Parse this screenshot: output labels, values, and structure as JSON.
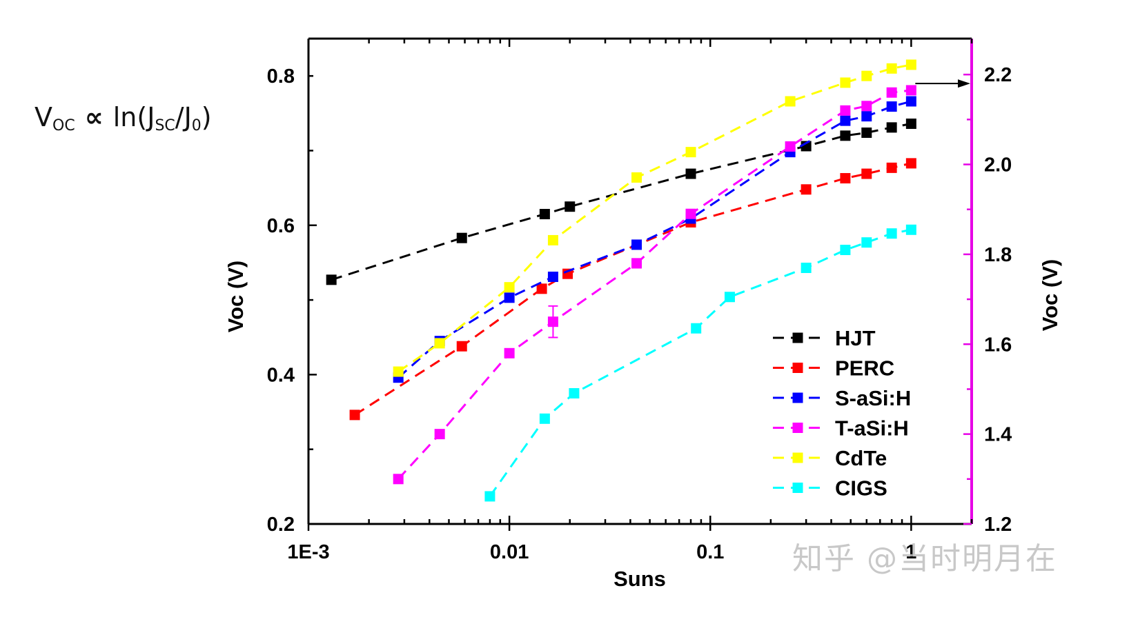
{
  "formula": {
    "v": "V",
    "v_sub": "OC",
    "prop": "∝",
    "ln": "ln(J",
    "jsc_sub": "SC",
    "slash": "/J",
    "j0_sub": "0",
    "close": ")"
  },
  "watermark": "知乎 @当时明月在",
  "colors": {
    "HJT": "#000000",
    "PERC": "#ff0000",
    "S-aSi:H": "#0000ff",
    "T-aSi:H": "#ff00ff",
    "CdTe": "#ffff00",
    "CIGS": "#00ffff",
    "right_axis": "#e600e6"
  },
  "chart_data": {
    "type": "scatter",
    "xlabel": "Suns",
    "ylabel": "Voc (V)",
    "y2label": "Voc (V)",
    "xscale": "log",
    "xlim": [
      0.001,
      2
    ],
    "ylim": [
      0.2,
      0.85
    ],
    "y2lim": [
      1.2,
      2.28
    ],
    "xticks": [
      {
        "v": 0.001,
        "label": "1E-3"
      },
      {
        "v": 0.01,
        "label": "0.01"
      },
      {
        "v": 0.1,
        "label": "0.1"
      },
      {
        "v": 1,
        "label": "1"
      }
    ],
    "yticks": [
      {
        "v": 0.2,
        "label": "0.2"
      },
      {
        "v": 0.4,
        "label": "0.4"
      },
      {
        "v": 0.6,
        "label": "0.6"
      },
      {
        "v": 0.8,
        "label": "0.8"
      }
    ],
    "y2ticks": [
      {
        "v": 1.2,
        "label": "1.2"
      },
      {
        "v": 1.4,
        "label": "1.4"
      },
      {
        "v": 1.6,
        "label": "1.6"
      },
      {
        "v": 1.8,
        "label": "1.8"
      },
      {
        "v": 2.0,
        "label": "2.0"
      },
      {
        "v": 2.2,
        "label": "2.2"
      }
    ],
    "grid": false,
    "legend_position": "bottom-right",
    "series": [
      {
        "name": "HJT",
        "axis": "left",
        "x": [
          0.0013,
          0.0058,
          0.015,
          0.02,
          0.08,
          0.3,
          0.47,
          0.6,
          0.8,
          1.0
        ],
        "y": [
          0.527,
          0.583,
          0.615,
          0.625,
          0.669,
          0.706,
          0.72,
          0.724,
          0.731,
          0.736
        ]
      },
      {
        "name": "PERC",
        "axis": "left",
        "x": [
          0.0017,
          0.0058,
          0.0145,
          0.0195,
          0.08,
          0.3,
          0.47,
          0.6,
          0.8,
          1.0
        ],
        "y": [
          0.346,
          0.438,
          0.515,
          0.535,
          0.604,
          0.648,
          0.663,
          0.669,
          0.677,
          0.683
        ]
      },
      {
        "name": "S-aSi:H",
        "axis": "left",
        "x": [
          0.0028,
          0.0045,
          0.01,
          0.0165,
          0.043,
          0.08,
          0.25,
          0.47,
          0.6,
          0.8,
          1.0
        ],
        "y": [
          0.396,
          0.445,
          0.503,
          0.531,
          0.574,
          0.609,
          0.698,
          0.74,
          0.746,
          0.759,
          0.766
        ]
      },
      {
        "name": "T-aSi:H",
        "axis": "right",
        "x": [
          0.0028,
          0.0045,
          0.01,
          0.0165,
          0.043,
          0.08,
          0.25,
          0.47,
          0.6,
          0.8,
          1.0
        ],
        "y": [
          1.3,
          1.4,
          1.58,
          1.65,
          1.78,
          1.89,
          2.04,
          2.12,
          2.13,
          2.16,
          2.165
        ],
        "yerr": [
          0,
          0,
          0,
          0.035,
          0.01,
          0,
          0,
          0,
          0,
          0,
          0
        ]
      },
      {
        "name": "CdTe",
        "axis": "left",
        "x": [
          0.0028,
          0.0045,
          0.01,
          0.0165,
          0.043,
          0.08,
          0.25,
          0.47,
          0.6,
          0.8,
          1.0
        ],
        "y": [
          0.404,
          0.442,
          0.517,
          0.58,
          0.664,
          0.698,
          0.766,
          0.791,
          0.8,
          0.81,
          0.815
        ]
      },
      {
        "name": "CIGS",
        "axis": "left",
        "x": [
          0.008,
          0.015,
          0.021,
          0.085,
          0.125,
          0.3,
          0.47,
          0.6,
          0.8,
          1.0
        ],
        "y": [
          0.237,
          0.341,
          0.375,
          0.462,
          0.504,
          0.543,
          0.567,
          0.577,
          0.589,
          0.594
        ]
      }
    ],
    "arrow_note": "arrow from T-aSi:H data to right axis"
  }
}
